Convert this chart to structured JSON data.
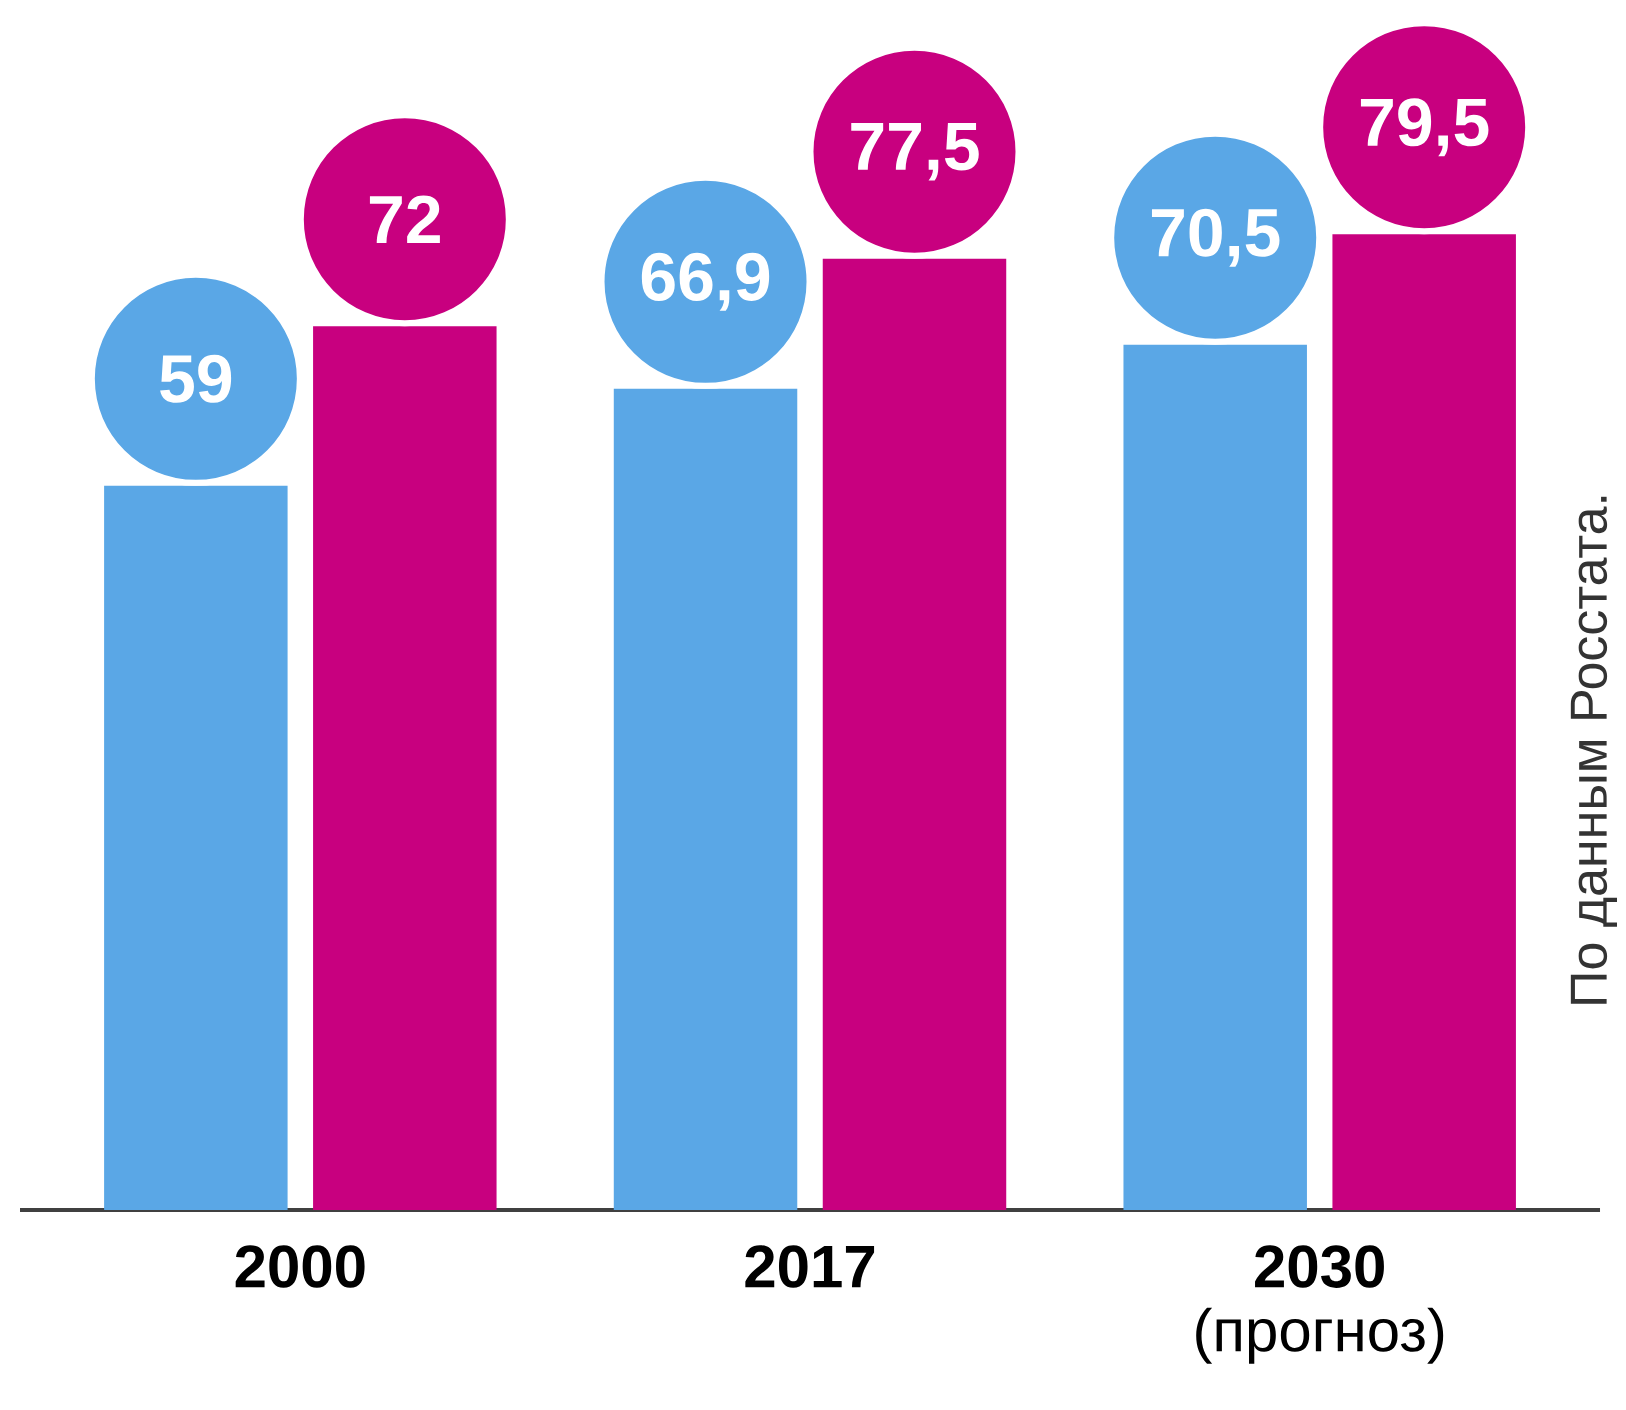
{
  "chart_data": {
    "type": "bar",
    "categories": [
      "**2000**",
      "**2017**",
      "**2030** (прогноз)"
    ],
    "series": [
      {
        "color": "#5aa7e6",
        "values": [
          59,
          66.9,
          70.5
        ],
        "value_labels": [
          "59",
          "66,9",
          "70,5"
        ]
      },
      {
        "color": "#c8007f",
        "values": [
          72,
          77.5,
          79.5
        ],
        "value_labels": [
          "72",
          "77,5",
          "79,5"
        ]
      }
    ],
    "annotations": [
      "По данным Росстата."
    ]
  }
}
